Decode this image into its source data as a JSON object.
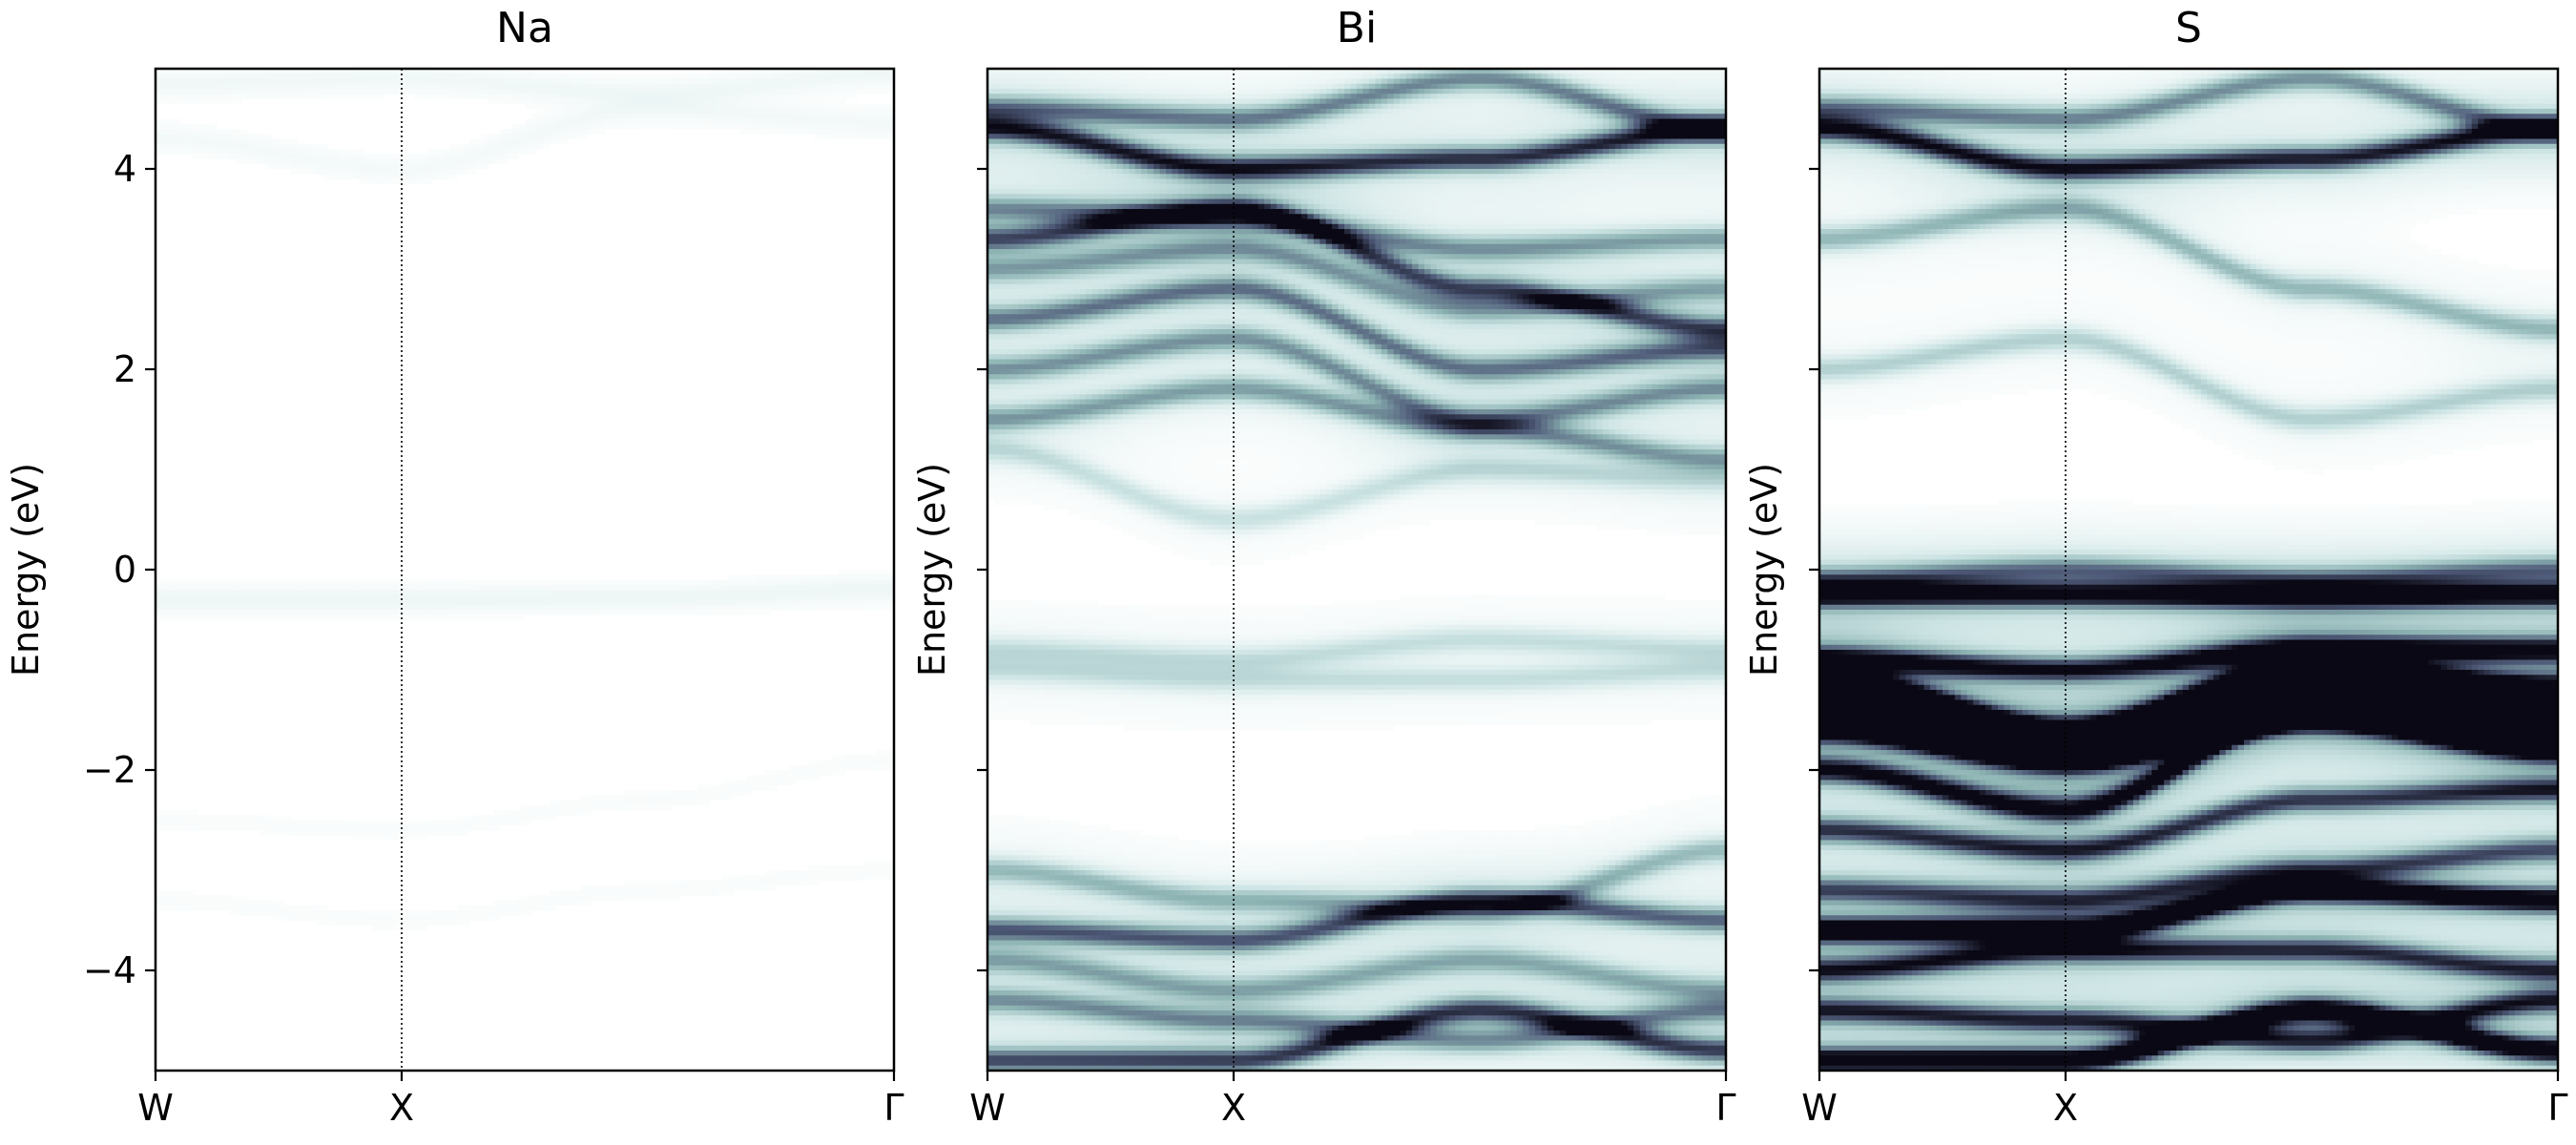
{
  "chart_data": [
    {
      "type": "heatmap",
      "title": "Na",
      "ylabel": "Energy (eV)",
      "xlabel": "",
      "x_ticks": [
        "W",
        "X",
        "Γ"
      ],
      "x_tick_positions": [
        0,
        1,
        3
      ],
      "xlim": [
        0,
        3
      ],
      "ylim": [
        -5,
        5
      ],
      "y_ticks": [
        -4,
        -2,
        0,
        2,
        4
      ],
      "y_tick_labels": [
        "−4",
        "−2",
        "0",
        "2",
        "4"
      ],
      "show_y_tick_labels": true,
      "vline_at": 1,
      "colormap": "bone_r",
      "intensity_scale": 0.12,
      "bands": [
        {
          "e": [
            4.85,
            4.9,
            4.75,
            4.95
          ],
          "w": 0.5
        },
        {
          "e": [
            4.3,
            4.0,
            4.6,
            4.45
          ],
          "w": 0.4
        },
        {
          "e": [
            -0.3,
            -0.3,
            -0.28,
            -0.2
          ],
          "w": 0.6
        },
        {
          "e": [
            -2.5,
            -2.6,
            -2.3,
            -1.9
          ],
          "w": 0.2
        },
        {
          "e": [
            -3.3,
            -3.5,
            -3.2,
            -3.0
          ],
          "w": 0.2
        }
      ]
    },
    {
      "type": "heatmap",
      "title": "Bi",
      "ylabel": "Energy (eV)",
      "xlabel": "",
      "x_ticks": [
        "W",
        "X",
        "Γ"
      ],
      "x_tick_positions": [
        0,
        1,
        3
      ],
      "xlim": [
        0,
        3
      ],
      "ylim": [
        -5,
        5
      ],
      "y_ticks": [
        -4,
        -2,
        0,
        2,
        4
      ],
      "y_tick_labels": [
        "",
        "",
        "",
        "",
        ""
      ],
      "show_y_tick_labels": false,
      "vline_at": 1,
      "colormap": "bone_r",
      "intensity_scale": 0.75,
      "bands": [
        {
          "e": [
            4.6,
            4.5,
            4.9,
            4.4
          ],
          "w": 0.7
        },
        {
          "e": [
            4.4,
            4.0,
            4.1,
            4.4
          ],
          "w": 1.0
        },
        {
          "e": [
            3.6,
            3.5,
            3.2,
            3.3
          ],
          "w": 0.6
        },
        {
          "e": [
            3.3,
            3.6,
            2.8,
            2.4
          ],
          "w": 0.8
        },
        {
          "e": [
            3.0,
            3.2,
            2.6,
            2.8
          ],
          "w": 0.5
        },
        {
          "e": [
            2.5,
            2.8,
            2.0,
            2.2
          ],
          "w": 0.7
        },
        {
          "e": [
            2.0,
            2.3,
            1.5,
            1.8
          ],
          "w": 0.6
        },
        {
          "e": [
            1.5,
            1.8,
            1.4,
            1.1
          ],
          "w": 0.6
        },
        {
          "e": [
            1.2,
            0.5,
            1.0,
            0.9
          ],
          "w": 0.3
        },
        {
          "e": [
            -0.8,
            -0.9,
            -0.7,
            -0.8
          ],
          "w": 0.3
        },
        {
          "e": [
            -1.0,
            -1.1,
            -1.1,
            -1.0
          ],
          "w": 0.3
        },
        {
          "e": [
            -3.0,
            -3.3,
            -3.4,
            -2.8
          ],
          "w": 0.5
        },
        {
          "e": [
            -3.6,
            -3.7,
            -3.3,
            -3.5
          ],
          "w": 0.8
        },
        {
          "e": [
            -3.9,
            -4.2,
            -3.9,
            -4.2
          ],
          "w": 0.5
        },
        {
          "e": [
            -4.3,
            -4.5,
            -4.7,
            -4.4
          ],
          "w": 0.6
        },
        {
          "e": [
            -4.9,
            -4.9,
            -4.4,
            -4.8
          ],
          "w": 0.9
        }
      ]
    },
    {
      "type": "heatmap",
      "title": "S",
      "ylabel": "Energy (eV)",
      "xlabel": "",
      "x_ticks": [
        "W",
        "X",
        "Γ"
      ],
      "x_tick_positions": [
        0,
        1,
        3
      ],
      "xlim": [
        0,
        3
      ],
      "ylim": [
        -5,
        5
      ],
      "y_ticks": [
        -4,
        -2,
        0,
        2,
        4
      ],
      "y_tick_labels": [
        "",
        "",
        "",
        "",
        ""
      ],
      "show_y_tick_labels": false,
      "vline_at": 1,
      "colormap": "bone_r",
      "intensity_scale": 1.0,
      "bands": [
        {
          "e": [
            4.6,
            4.5,
            4.9,
            4.4
          ],
          "w": 0.5
        },
        {
          "e": [
            4.4,
            4.0,
            4.1,
            4.4
          ],
          "w": 0.8
        },
        {
          "e": [
            3.3,
            3.6,
            2.8,
            2.4
          ],
          "w": 0.4
        },
        {
          "e": [
            2.0,
            2.3,
            1.5,
            1.8
          ],
          "w": 0.3
        },
        {
          "e": [
            -0.25,
            -0.25,
            -0.27,
            -0.25
          ],
          "w": 0.9
        },
        {
          "e": [
            -0.1,
            0.0,
            -0.1,
            0.0
          ],
          "w": 0.5
        },
        {
          "e": [
            -0.9,
            -1.0,
            -0.8,
            -0.8
          ],
          "w": 0.8
        },
        {
          "e": [
            -1.1,
            -1.6,
            -1.0,
            -1.2
          ],
          "w": 1.0
        },
        {
          "e": [
            -1.3,
            -1.8,
            -1.2,
            -1.6
          ],
          "w": 1.0
        },
        {
          "e": [
            -1.6,
            -1.9,
            -1.5,
            -1.8
          ],
          "w": 0.9
        },
        {
          "e": [
            -2.0,
            -2.4,
            -1.4,
            -1.3
          ],
          "w": 0.8
        },
        {
          "e": [
            -2.6,
            -2.8,
            -2.3,
            -2.2
          ],
          "w": 0.7
        },
        {
          "e": [
            -3.2,
            -3.3,
            -3.0,
            -2.8
          ],
          "w": 0.6
        },
        {
          "e": [
            -3.6,
            -3.6,
            -3.2,
            -3.3
          ],
          "w": 1.0
        },
        {
          "e": [
            -4.0,
            -3.8,
            -3.8,
            -4.0
          ],
          "w": 0.7
        },
        {
          "e": [
            -4.4,
            -4.5,
            -4.7,
            -4.3
          ],
          "w": 0.7
        },
        {
          "e": [
            -4.9,
            -4.9,
            -4.4,
            -4.8
          ],
          "w": 1.0
        }
      ]
    }
  ]
}
